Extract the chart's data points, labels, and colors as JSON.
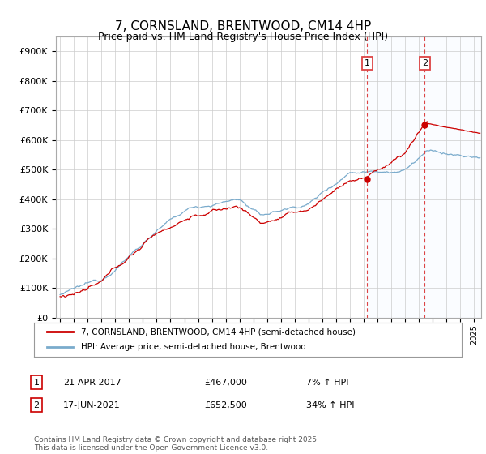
{
  "title": "7, CORNSLAND, BRENTWOOD, CM14 4HP",
  "subtitle": "Price paid vs. HM Land Registry's House Price Index (HPI)",
  "ylim": [
    0,
    950000
  ],
  "yticks": [
    0,
    100000,
    200000,
    300000,
    400000,
    500000,
    600000,
    700000,
    800000,
    900000
  ],
  "ytick_labels": [
    "£0",
    "£100K",
    "£200K",
    "£300K",
    "£400K",
    "£500K",
    "£600K",
    "£700K",
    "£800K",
    "£900K"
  ],
  "line1_color": "#cc0000",
  "line2_color": "#7aabcc",
  "marker1_date": "21-APR-2017",
  "marker1_price": 467000,
  "marker1_pct": "7% ↑ HPI",
  "marker2_date": "17-JUN-2021",
  "marker2_price": 652500,
  "marker2_pct": "34% ↑ HPI",
  "legend_line1": "7, CORNSLAND, BRENTWOOD, CM14 4HP (semi-detached house)",
  "legend_line2": "HPI: Average price, semi-detached house, Brentwood",
  "footer": "Contains HM Land Registry data © Crown copyright and database right 2025.\nThis data is licensed under the Open Government Licence v3.0.",
  "background_color": "#ffffff",
  "grid_color": "#cccccc",
  "shade_color": "#ddeeff",
  "vline_color": "#dd4444"
}
